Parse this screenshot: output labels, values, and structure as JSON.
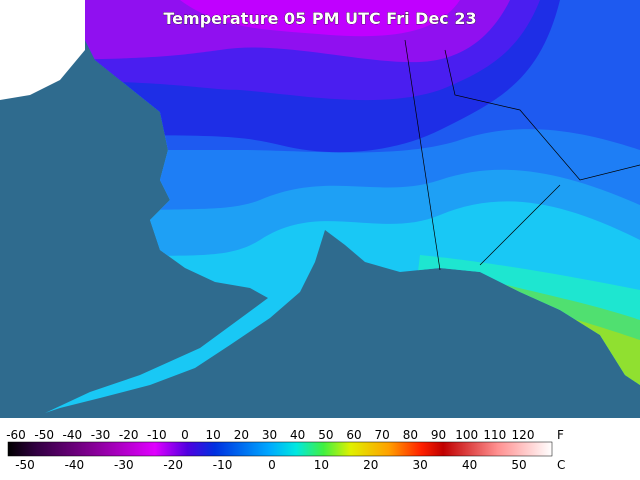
{
  "header": {
    "title": "Temperature 05 PM UTC Fri Dec 23"
  },
  "legend": {
    "fahrenheit": {
      "unit": "F",
      "labels": [
        -60,
        -50,
        -40,
        -30,
        -20,
        -10,
        0,
        10,
        20,
        30,
        40,
        50,
        60,
        70,
        80,
        90,
        100,
        110,
        120
      ]
    },
    "celsius": {
      "unit": "C",
      "labels": [
        -50,
        -40,
        -30,
        -20,
        -10,
        0,
        10,
        20,
        30,
        40,
        50
      ]
    }
  }
}
